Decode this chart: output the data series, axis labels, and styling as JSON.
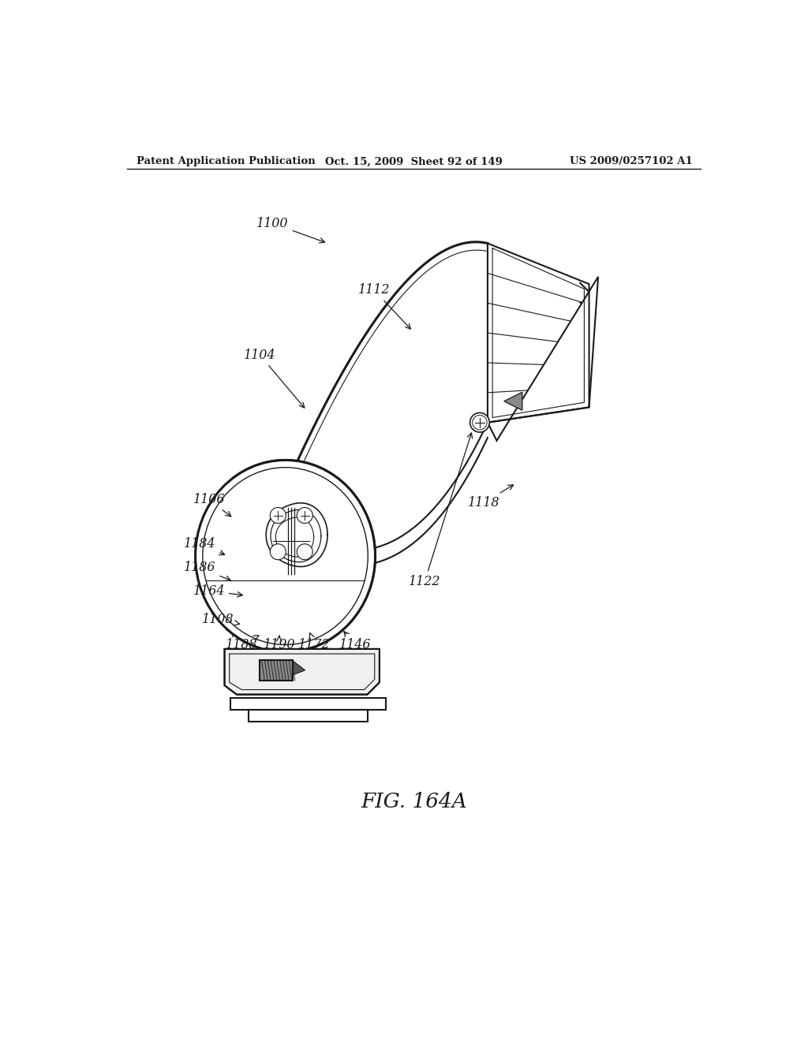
{
  "bg_color": "#ffffff",
  "line_color": "#1a1a1a",
  "header_left": "Patent Application Publication",
  "header_center": "Oct. 15, 2009  Sheet 92 of 149",
  "header_right": "US 2009/0257102 A1",
  "figure_label": "FIG. 164A",
  "lw_main": 1.5,
  "lw_thin": 0.8,
  "lw_thick": 2.2
}
